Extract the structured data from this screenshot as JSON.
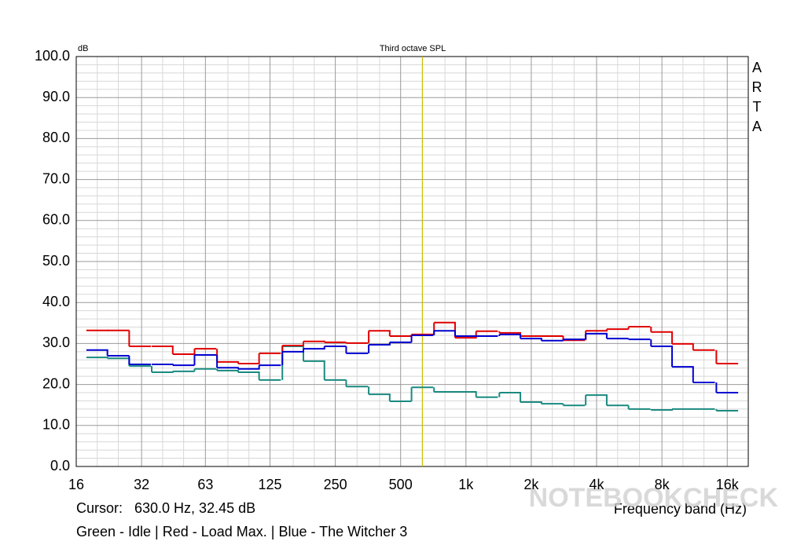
{
  "chart_data": {
    "type": "step",
    "title": "Third octave SPL",
    "y_axis_label": "dB",
    "x_axis_label": "Frequency band (Hz)",
    "side_label": "ARTA",
    "cursor_text": "Cursor:   630.0 Hz, 32.45 dB",
    "cursor_x": 630,
    "cursor_color": "#c8c000",
    "legend_text": "Green - Idle | Red - Load Max. | Blue - The Witcher 3",
    "watermark": "NOTEBOOKCHECK",
    "x_log": true,
    "grid": true,
    "xlim": [
      16,
      20000
    ],
    "ylim": [
      0,
      100
    ],
    "xticks": [
      16,
      32,
      63,
      125,
      250,
      500,
      {
        "value": 1000,
        "label": "1k"
      },
      {
        "value": 2000,
        "label": "2k"
      },
      {
        "value": 4000,
        "label": "4k"
      },
      {
        "value": 8000,
        "label": "8k"
      },
      {
        "value": 16000,
        "label": "16k"
      }
    ],
    "yticks": [
      {
        "value": 0,
        "label": "0.0"
      },
      {
        "value": 10,
        "label": "10.0"
      },
      {
        "value": 20,
        "label": "20.0"
      },
      {
        "value": 30,
        "label": "30.0"
      },
      {
        "value": 40,
        "label": "40.0"
      },
      {
        "value": 50,
        "label": "50.0"
      },
      {
        "value": 60,
        "label": "60.0"
      },
      {
        "value": 70,
        "label": "70.0"
      },
      {
        "value": 80,
        "label": "80.0"
      },
      {
        "value": 90,
        "label": "90.0"
      },
      {
        "value": 100,
        "label": "100.0"
      }
    ],
    "xminor": [
      20,
      25,
      40,
      50,
      80,
      100,
      160,
      200,
      315,
      400,
      630,
      800,
      1250,
      1600,
      2500,
      3150,
      5000,
      6300,
      10000,
      12500
    ],
    "yminor": [
      2,
      4,
      6,
      8,
      12,
      14,
      16,
      18,
      22,
      24,
      26,
      28,
      32,
      34,
      36,
      38,
      42,
      44,
      46,
      48,
      52,
      54,
      56,
      58,
      62,
      64,
      66,
      68,
      72,
      74,
      76,
      78,
      82,
      84,
      86,
      88,
      92,
      94,
      96,
      98
    ],
    "x": [
      20,
      25,
      31.5,
      40,
      50,
      63,
      80,
      100,
      125,
      160,
      200,
      250,
      315,
      400,
      500,
      630,
      800,
      1000,
      1250,
      1600,
      2000,
      2500,
      3150,
      4000,
      5000,
      6300,
      8000,
      10000,
      12500,
      16000
    ],
    "series": [
      {
        "name": "Idle",
        "color": "#1a8a80",
        "values": [
          26.6,
          26.4,
          24.5,
          23.0,
          23.2,
          23.8,
          23.4,
          23.0,
          21.1,
          29.3,
          25.7,
          21.1,
          19.5,
          17.6,
          15.9,
          19.3,
          18.2,
          18.2,
          16.9,
          18.0,
          15.7,
          15.3,
          14.9,
          17.4,
          14.9,
          14.0,
          13.8,
          14.0,
          14.0,
          13.6
        ]
      },
      {
        "name": "Load Max.",
        "color": "#e00000",
        "values": [
          33.2,
          33.2,
          29.3,
          29.3,
          27.4,
          28.7,
          25.5,
          25.1,
          27.6,
          29.5,
          30.5,
          30.3,
          30.1,
          33.1,
          31.8,
          32.2,
          35.1,
          31.4,
          33.0,
          32.6,
          31.8,
          31.8,
          30.8,
          33.1,
          33.5,
          34.1,
          32.8,
          29.9,
          28.4,
          25.1
        ]
      },
      {
        "name": "The Witcher 3",
        "color": "#0000d0",
        "values": [
          28.4,
          27.0,
          24.9,
          24.9,
          24.7,
          27.2,
          24.1,
          23.8,
          24.7,
          28.0,
          28.7,
          29.3,
          27.6,
          29.7,
          30.3,
          32.0,
          33.1,
          31.8,
          31.8,
          32.2,
          31.2,
          30.7,
          31.0,
          32.4,
          31.2,
          31.0,
          29.3,
          24.3,
          20.5,
          18.0
        ]
      }
    ]
  }
}
